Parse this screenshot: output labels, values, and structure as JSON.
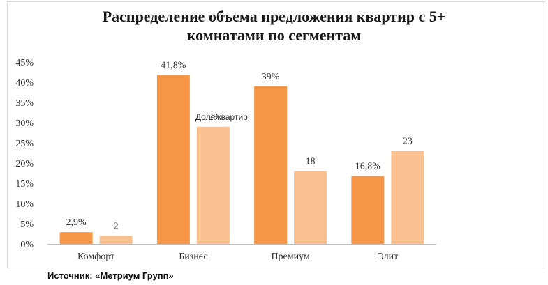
{
  "chart_data": {
    "type": "bar",
    "title": "Распределение объема предложения квартир с 5+\nкомнатами по сегментам",
    "categories": [
      "Комфорт",
      "Бизнес",
      "Премиум",
      "Элит"
    ],
    "y_ticks": [
      "0%",
      "5%",
      "10%",
      "15%",
      "20%",
      "25%",
      "30%",
      "35%",
      "40%",
      "45%"
    ],
    "ylim": [
      0,
      45
    ],
    "grid": false,
    "series": [
      {
        "values": [
          2.9,
          41.8,
          39,
          16.8
        ],
        "labels": [
          "2,9%",
          "41,8%",
          "39%",
          "16,8%"
        ],
        "color": "#f79646"
      },
      {
        "name": "Доля квартир",
        "values": [
          2,
          29,
          18,
          23
        ],
        "labels": [
          "2",
          "29",
          "18",
          "23"
        ],
        "color": "#fac090"
      }
    ]
  },
  "source": "Источник: «Метриум Групп»"
}
